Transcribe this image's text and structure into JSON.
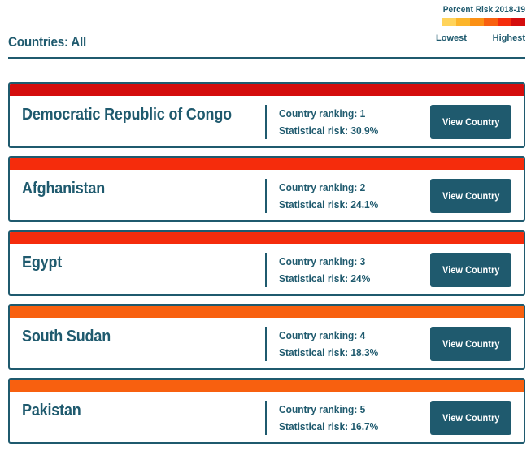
{
  "filter": {
    "title": "Countries: All"
  },
  "legend": {
    "title": "Percent Risk 2018-19",
    "lowest": "Lowest",
    "highest": "Highest",
    "colors": [
      "#ffd35a",
      "#fcb52a",
      "#fb9014",
      "#f8600f",
      "#f52c0c",
      "#d40d0d"
    ]
  },
  "countries": [
    {
      "name": "Democratic Republic of Congo",
      "ranking": "Country ranking: 1",
      "risk": "Statistical risk: 30.9%",
      "color": "#d40d0d",
      "button": "View Country"
    },
    {
      "name": "Afghanistan",
      "ranking": "Country ranking: 2",
      "risk": "Statistical risk: 24.1%",
      "color": "#f52c0c",
      "button": "View Country"
    },
    {
      "name": "Egypt",
      "ranking": "Country ranking: 3",
      "risk": "Statistical risk: 24%",
      "color": "#f52c0c",
      "button": "View Country"
    },
    {
      "name": "South Sudan",
      "ranking": "Country ranking: 4",
      "risk": "Statistical risk: 18.3%",
      "color": "#f8600f",
      "button": "View Country"
    },
    {
      "name": "Pakistan",
      "ranking": "Country ranking: 5",
      "risk": "Statistical risk: 16.7%",
      "color": "#f8600f",
      "button": "View Country"
    }
  ]
}
